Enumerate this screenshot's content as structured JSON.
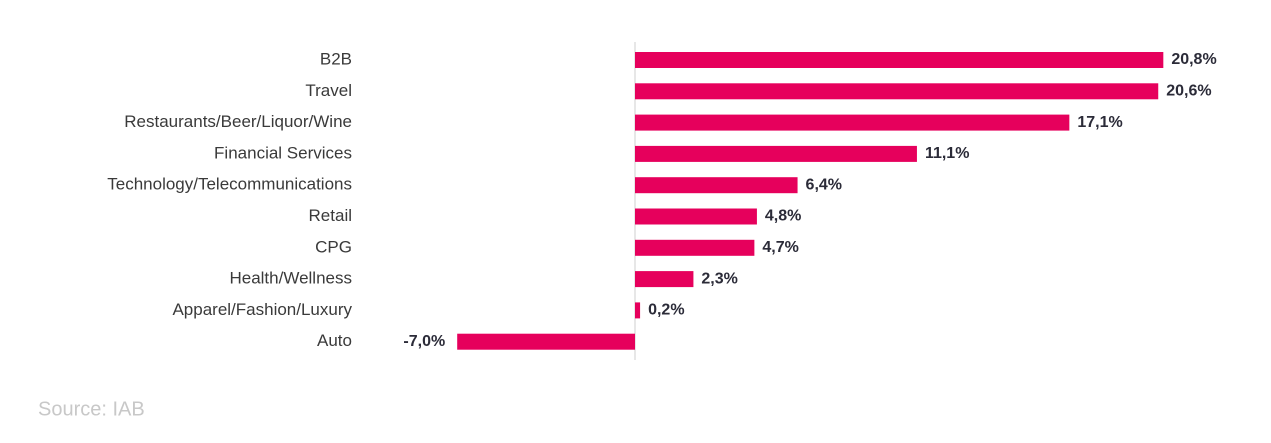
{
  "chart_data": {
    "type": "hbar",
    "categories": [
      "B2B",
      "Travel",
      "Restaurants/Beer/Liquor/Wine",
      "Financial Services",
      "Technology/Telecommunications",
      "Retail",
      "CPG",
      "Health/Wellness",
      "Apparel/Fashion/Luxury",
      "Auto"
    ],
    "values": [
      20.8,
      20.6,
      17.1,
      11.1,
      6.4,
      4.8,
      4.7,
      2.3,
      0.2,
      -7.0
    ],
    "value_labels": [
      "20,8%",
      "20,6%",
      "17,1%",
      "11,1%",
      "6,4%",
      "4,8%",
      "4,7%",
      "2,3%",
      "0,2%",
      "-7,0%"
    ],
    "color": "#e6005c",
    "xlim": [
      -10,
      25
    ],
    "source": "Source: IAB"
  }
}
